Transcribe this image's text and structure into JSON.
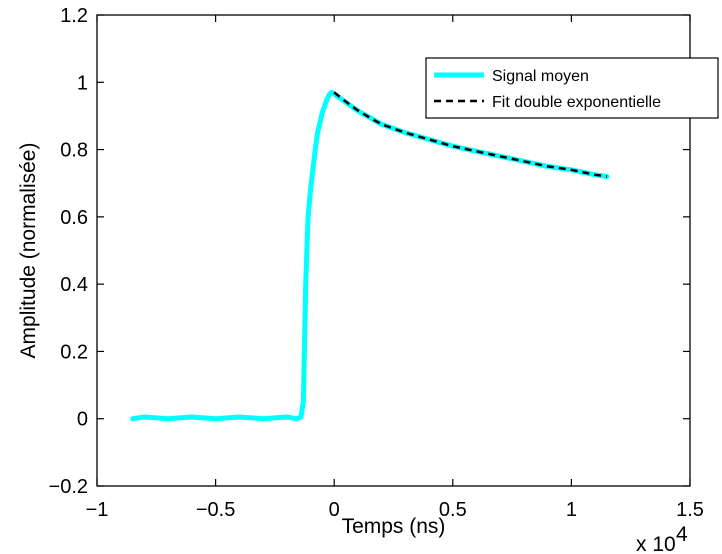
{
  "chart_data": {
    "type": "line",
    "title": "",
    "xlabel": "Temps (ns)",
    "ylabel": "Amplitude (normalisée)",
    "x_multiplier": {
      "base": "x 10",
      "exponent": "4"
    },
    "xlim": [
      -10000,
      15000
    ],
    "ylim": [
      -0.2,
      1.2
    ],
    "xticks": [
      -10000,
      -5000,
      0,
      5000,
      10000,
      15000
    ],
    "xtick_labels": [
      "−1",
      "−0.5",
      "0",
      "0.5",
      "1",
      "1.5"
    ],
    "yticks": [
      -0.2,
      0,
      0.2,
      0.4,
      0.6,
      0.8,
      1,
      1.2
    ],
    "ytick_labels": [
      "−0.2",
      "0",
      "0.2",
      "0.4",
      "0.6",
      "0.8",
      "1",
      "1.2"
    ],
    "grid": false,
    "legend_position": "top-right",
    "series": [
      {
        "name": "Signal moyen",
        "color": "#00ffff",
        "style": "solid",
        "x": [
          -8500,
          -8000,
          -7000,
          -6000,
          -5000,
          -4000,
          -3000,
          -2000,
          -1600,
          -1400,
          -1300,
          -1200,
          -1100,
          -1000,
          -900,
          -800,
          -700,
          -600,
          -500,
          -400,
          -300,
          -200,
          -100,
          0,
          500,
          1000,
          1500,
          2000,
          3000,
          4000,
          5000,
          6000,
          7000,
          8000,
          9000,
          10000,
          11000,
          11500
        ],
        "y": [
          0.0,
          0.005,
          0.0,
          0.005,
          0.0,
          0.005,
          0.0,
          0.005,
          0.0,
          0.005,
          0.05,
          0.4,
          0.6,
          0.68,
          0.74,
          0.8,
          0.85,
          0.88,
          0.91,
          0.93,
          0.95,
          0.965,
          0.97,
          0.965,
          0.94,
          0.915,
          0.895,
          0.875,
          0.85,
          0.83,
          0.81,
          0.795,
          0.78,
          0.765,
          0.75,
          0.74,
          0.725,
          0.72
        ]
      },
      {
        "name": "Fit double exponentielle",
        "color": "#000000",
        "style": "dashed",
        "x": [
          0,
          500,
          1000,
          1500,
          2000,
          3000,
          4000,
          5000,
          6000,
          7000,
          8000,
          9000,
          10000,
          11000,
          11500
        ],
        "y": [
          0.97,
          0.942,
          0.916,
          0.895,
          0.875,
          0.85,
          0.83,
          0.81,
          0.795,
          0.78,
          0.765,
          0.75,
          0.74,
          0.725,
          0.72
        ]
      }
    ]
  }
}
